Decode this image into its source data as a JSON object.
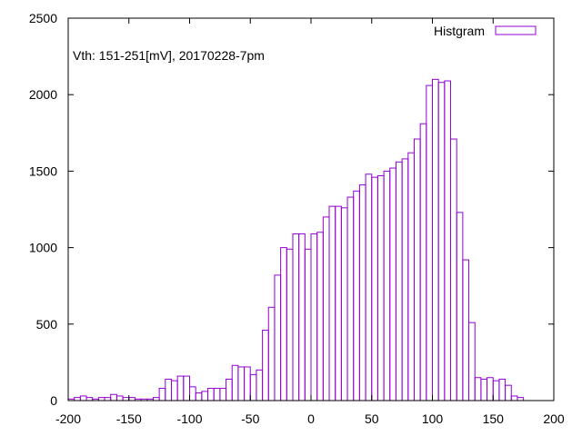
{
  "chart_data": {
    "type": "bar",
    "title": "",
    "xlabel": "",
    "ylabel": "",
    "xlim": [
      -200,
      200
    ],
    "ylim": [
      0,
      2500
    ],
    "xticks": [
      -200,
      -150,
      -100,
      -50,
      0,
      50,
      100,
      150,
      200
    ],
    "yticks": [
      0,
      500,
      1000,
      1500,
      2000,
      2500
    ],
    "grid": false,
    "legend_position": "top-right",
    "annotation": "Vth: 151-251[mV],  20170228-7pm",
    "bin_width": 5,
    "series": [
      {
        "name": "Histgram",
        "color": "#9400d3",
        "x": [
          -197.5,
          -192.5,
          -187.5,
          -182.5,
          -177.5,
          -172.5,
          -167.5,
          -162.5,
          -157.5,
          -152.5,
          -147.5,
          -142.5,
          -137.5,
          -132.5,
          -127.5,
          -122.5,
          -117.5,
          -112.5,
          -107.5,
          -102.5,
          -97.5,
          -92.5,
          -87.5,
          -82.5,
          -77.5,
          -72.5,
          -67.5,
          -62.5,
          -57.5,
          -52.5,
          -47.5,
          -42.5,
          -37.5,
          -32.5,
          -27.5,
          -22.5,
          -17.5,
          -12.5,
          -7.5,
          -2.5,
          2.5,
          7.5,
          12.5,
          17.5,
          22.5,
          27.5,
          32.5,
          37.5,
          42.5,
          47.5,
          52.5,
          57.5,
          62.5,
          67.5,
          72.5,
          77.5,
          82.5,
          87.5,
          92.5,
          97.5,
          102.5,
          107.5,
          112.5,
          117.5,
          122.5,
          127.5,
          132.5,
          137.5,
          142.5,
          147.5,
          152.5,
          157.5,
          162.5,
          167.5,
          172.5,
          177.5,
          182.5,
          187.5,
          192.5,
          197.5
        ],
        "values": [
          10,
          20,
          30,
          20,
          10,
          20,
          20,
          40,
          30,
          20,
          20,
          10,
          10,
          10,
          20,
          80,
          140,
          130,
          160,
          160,
          90,
          50,
          60,
          80,
          80,
          80,
          140,
          230,
          220,
          220,
          170,
          200,
          460,
          610,
          820,
          1000,
          990,
          1090,
          1090,
          990,
          1090,
          1100,
          1200,
          1270,
          1270,
          1260,
          1330,
          1370,
          1410,
          1480,
          1460,
          1470,
          1500,
          1520,
          1560,
          1580,
          1620,
          1710,
          1810,
          2060,
          2100,
          2080,
          2090,
          1710,
          1230,
          920,
          510,
          150,
          140,
          150,
          130,
          140,
          100,
          30,
          20,
          0,
          0,
          0,
          0,
          0
        ]
      }
    ]
  }
}
